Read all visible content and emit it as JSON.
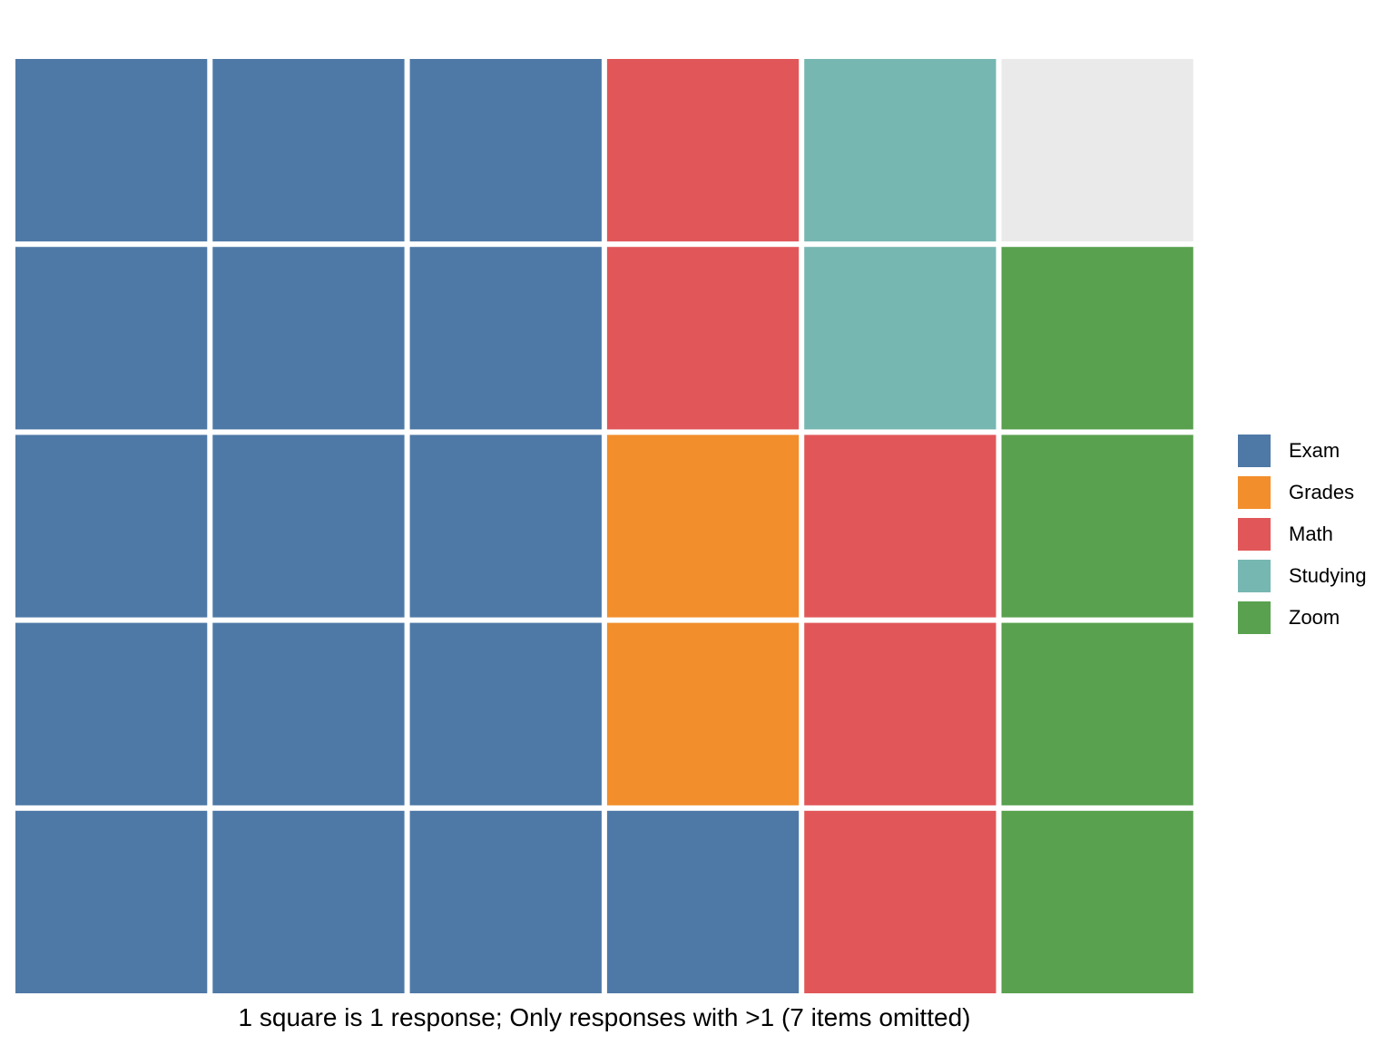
{
  "chart_data": {
    "type": "waffle",
    "rows": 5,
    "columns": 6,
    "categories": [
      {
        "name": "Exam",
        "count": 16,
        "color": "#4e79a7"
      },
      {
        "name": "Grades",
        "count": 2,
        "color": "#f28e2b"
      },
      {
        "name": "Math",
        "count": 5,
        "color": "#e15759"
      },
      {
        "name": "Studying",
        "count": 2,
        "color": "#76b7b2"
      },
      {
        "name": "Zoom",
        "count": 4,
        "color": "#59a14f"
      }
    ],
    "empty_color": "#eaeaea",
    "fill_order": "column-wise from bottom-left",
    "caption": "1 square is 1 response; Only responses with >1 (7 items omitted)",
    "legend_position": "right"
  }
}
